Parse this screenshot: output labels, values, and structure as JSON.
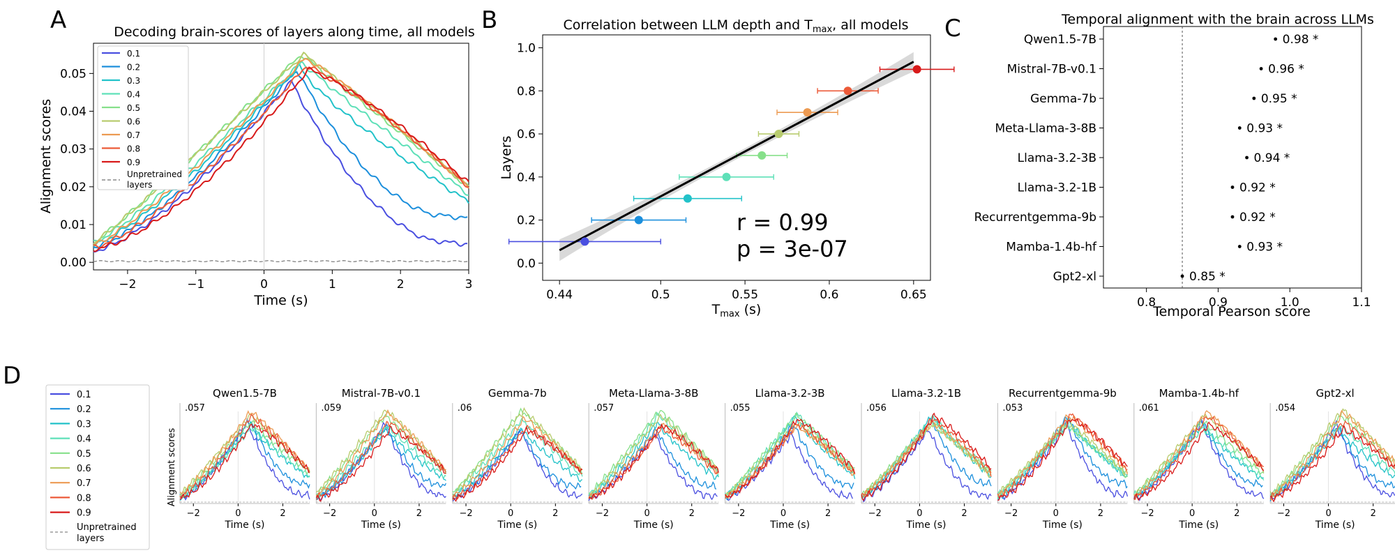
{
  "figure_title": "",
  "layer_colors": [
    "#4a4fe0",
    "#1c8fdc",
    "#22c2c9",
    "#5ee0b8",
    "#86e08a",
    "#b8cc6e",
    "#ec9a52",
    "#ec5a38",
    "#d81a1a"
  ],
  "chart_data": [
    {
      "panel": "A",
      "type": "line",
      "title": "Decoding brain-scores of layers along time, all models",
      "xlabel": "Time (s)",
      "ylabel": "Alignment scores",
      "xlim": [
        -2.5,
        3.0
      ],
      "ylim": [
        -0.002,
        0.058
      ],
      "xticks": [
        -2,
        -1,
        0,
        1,
        2,
        3
      ],
      "xtick_labels": [
        "−2",
        "−1",
        "0",
        "1",
        "2",
        "3"
      ],
      "yticks": [
        0.0,
        0.01,
        0.02,
        0.03,
        0.04,
        0.05
      ],
      "ytick_labels": [
        "0.00",
        "0.01",
        "0.02",
        "0.03",
        "0.04",
        "0.05"
      ],
      "legend": {
        "position": "top-left",
        "entries": [
          "0.1",
          "0.2",
          "0.3",
          "0.4",
          "0.5",
          "0.6",
          "0.7",
          "0.8",
          "0.9"
        ],
        "unpretrained_label": [
          "Unpretrained",
          "layers"
        ]
      },
      "series_shape": {
        "layers": [
          "0.1",
          "0.2",
          "0.3",
          "0.4",
          "0.5",
          "0.6",
          "0.7",
          "0.8",
          "0.9"
        ],
        "peak": [
          0.048,
          0.051,
          0.052,
          0.053,
          0.055,
          0.055,
          0.054,
          0.052,
          0.051
        ],
        "peak_t": [
          0.4,
          0.48,
          0.52,
          0.55,
          0.55,
          0.58,
          0.6,
          0.62,
          0.65
        ],
        "start": [
          0.003,
          0.004,
          0.0045,
          0.005,
          0.005,
          0.005,
          0.0045,
          0.004,
          0.0035
        ],
        "end": [
          0.004,
          0.011,
          0.016,
          0.018,
          0.02,
          0.02,
          0.02,
          0.02,
          0.021
        ],
        "rise_power": [
          1.4,
          1.35,
          1.25,
          1.15,
          1.05,
          1.05,
          1.2,
          1.35,
          1.5
        ],
        "fall_power": [
          2.2,
          1.6,
          1.25,
          1.05,
          1.0,
          0.95,
          0.9,
          0.85,
          0.8
        ],
        "unpretrained_level": 0.0003
      }
    },
    {
      "panel": "B",
      "type": "scatter",
      "title": "Correlation between LLM depth and T",
      "title_sub": "max",
      "title_tail": ", all models",
      "xlabel": "T",
      "xlabel_sub": "max",
      "xlabel_tail": " (s)",
      "ylabel": "Layers",
      "xlim": [
        0.43,
        0.66
      ],
      "ylim": [
        -0.08,
        1.06
      ],
      "xticks": [
        0.44,
        0.5,
        0.55,
        0.6,
        0.65
      ],
      "xtick_labels": [
        "0.44",
        "0.5",
        "0.55",
        "0.6",
        "0.65"
      ],
      "yticks": [
        0.0,
        0.2,
        0.4,
        0.6,
        0.8,
        1.0
      ],
      "ytick_labels": [
        "0.0",
        "0.2",
        "0.4",
        "0.6",
        "0.8",
        "1.0"
      ],
      "x": [
        0.455,
        0.487,
        0.516,
        0.539,
        0.56,
        0.57,
        0.587,
        0.611,
        0.652
      ],
      "y": [
        0.1,
        0.2,
        0.3,
        0.4,
        0.5,
        0.6,
        0.7,
        0.8,
        0.9
      ],
      "xerr": [
        0.045,
        0.028,
        0.032,
        0.028,
        0.015,
        0.012,
        0.018,
        0.018,
        0.022
      ],
      "fit": {
        "x0": 0.44,
        "y0": 0.06,
        "x1": 0.65,
        "y1": 0.935
      },
      "ci_band": {
        "start_width": 0.1,
        "mid_width": 0.03,
        "end_width": 0.09
      },
      "annotation": [
        "r = 0.99",
        "p = 3e-07"
      ]
    },
    {
      "panel": "C",
      "type": "scatter",
      "title": "Temporal alignment with the brain across LLMs",
      "xlabel": "Temporal Pearson score",
      "xlim": [
        0.74,
        1.1
      ],
      "xticks": [
        0.8,
        0.9,
        1.0,
        1.1
      ],
      "xtick_labels": [
        "0.8",
        "0.9",
        "1.0",
        "1.1"
      ],
      "reference_line": 0.85,
      "models": [
        "Qwen1.5-7B",
        "Mistral-7B-v0.1",
        "Gemma-7b",
        "Meta-Llama-3-8B",
        "Llama-3.2-3B",
        "Llama-3.2-1B",
        "Recurrentgemma-9b",
        "Mamba-1.4b-hf",
        "Gpt2-xl"
      ],
      "values": [
        0.98,
        0.96,
        0.95,
        0.93,
        0.94,
        0.92,
        0.92,
        0.93,
        0.85
      ],
      "value_labels": [
        "0.98 *",
        "0.96 *",
        "0.95 *",
        "0.93 *",
        "0.94 *",
        "0.92 *",
        "0.92 *",
        "0.93 *",
        "0.85 *"
      ]
    },
    {
      "panel": "D",
      "type": "line",
      "ylabel": "Alignment scores",
      "xlabel": "Time (s)",
      "xlim": [
        -2.6,
        3.2
      ],
      "xticks": [
        -2,
        0,
        2
      ],
      "xtick_labels": [
        "−2",
        "0",
        "2"
      ],
      "legend": {
        "entries": [
          "0.1",
          "0.2",
          "0.3",
          "0.4",
          "0.5",
          "0.6",
          "0.7",
          "0.8",
          "0.9"
        ],
        "unpretrained_label": [
          "Unpretrained",
          "layers"
        ]
      },
      "models": [
        "Qwen1.5-7B",
        "Mistral-7B-v0.1",
        "Gemma-7b",
        "Meta-Llama-3-8B",
        "Llama-3.2-3B",
        "Llama-3.2-1B",
        "Recurrentgemma-9b",
        "Mamba-1.4b-hf",
        "Gpt2-xl"
      ],
      "ymax_labels": [
        ".057",
        ".059",
        ".06",
        ".057",
        ".055",
        ".056",
        ".053",
        ".061",
        ".054"
      ],
      "ymax": [
        0.057,
        0.059,
        0.06,
        0.057,
        0.055,
        0.056,
        0.053,
        0.061,
        0.054
      ]
    }
  ],
  "panel_letters": [
    "A",
    "B",
    "C",
    "D"
  ]
}
